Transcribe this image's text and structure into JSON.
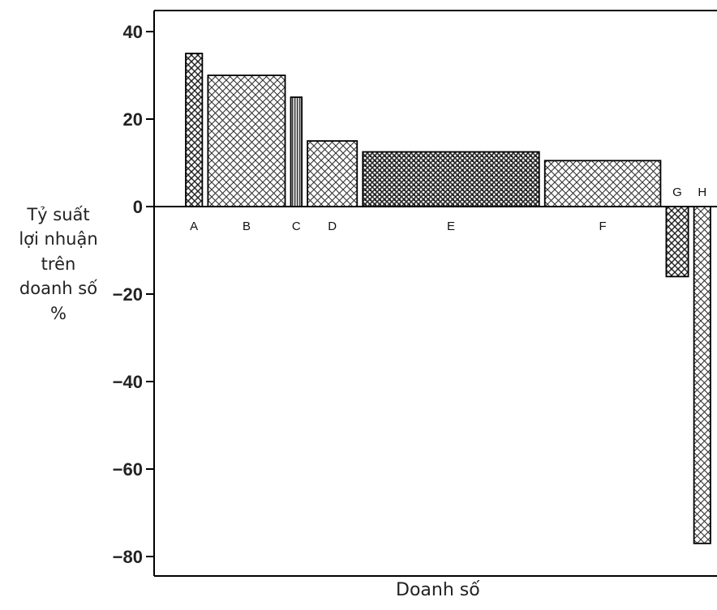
{
  "chart_data": {
    "type": "bar",
    "subtype": "variable-width",
    "ylabel_lines": [
      "Tỷ suất",
      "lợi nhuận",
      "trên",
      "doanh số",
      "%"
    ],
    "xlabel": "Doanh số",
    "ylim": [
      -85,
      40
    ],
    "yticks": [
      40,
      20,
      0,
      -20,
      -40,
      -60,
      -80
    ],
    "ytick_labels": [
      "40",
      "20",
      "0",
      "−20",
      "−40",
      "−60",
      "−80"
    ],
    "categories": [
      "A",
      "B",
      "C",
      "D",
      "E",
      "F",
      "G",
      "H"
    ],
    "values": [
      35,
      30,
      25,
      15,
      12.5,
      10.5,
      -16,
      -77
    ],
    "relative_widths": [
      3,
      14,
      2,
      9,
      32,
      21,
      4,
      3
    ],
    "grid": false
  }
}
